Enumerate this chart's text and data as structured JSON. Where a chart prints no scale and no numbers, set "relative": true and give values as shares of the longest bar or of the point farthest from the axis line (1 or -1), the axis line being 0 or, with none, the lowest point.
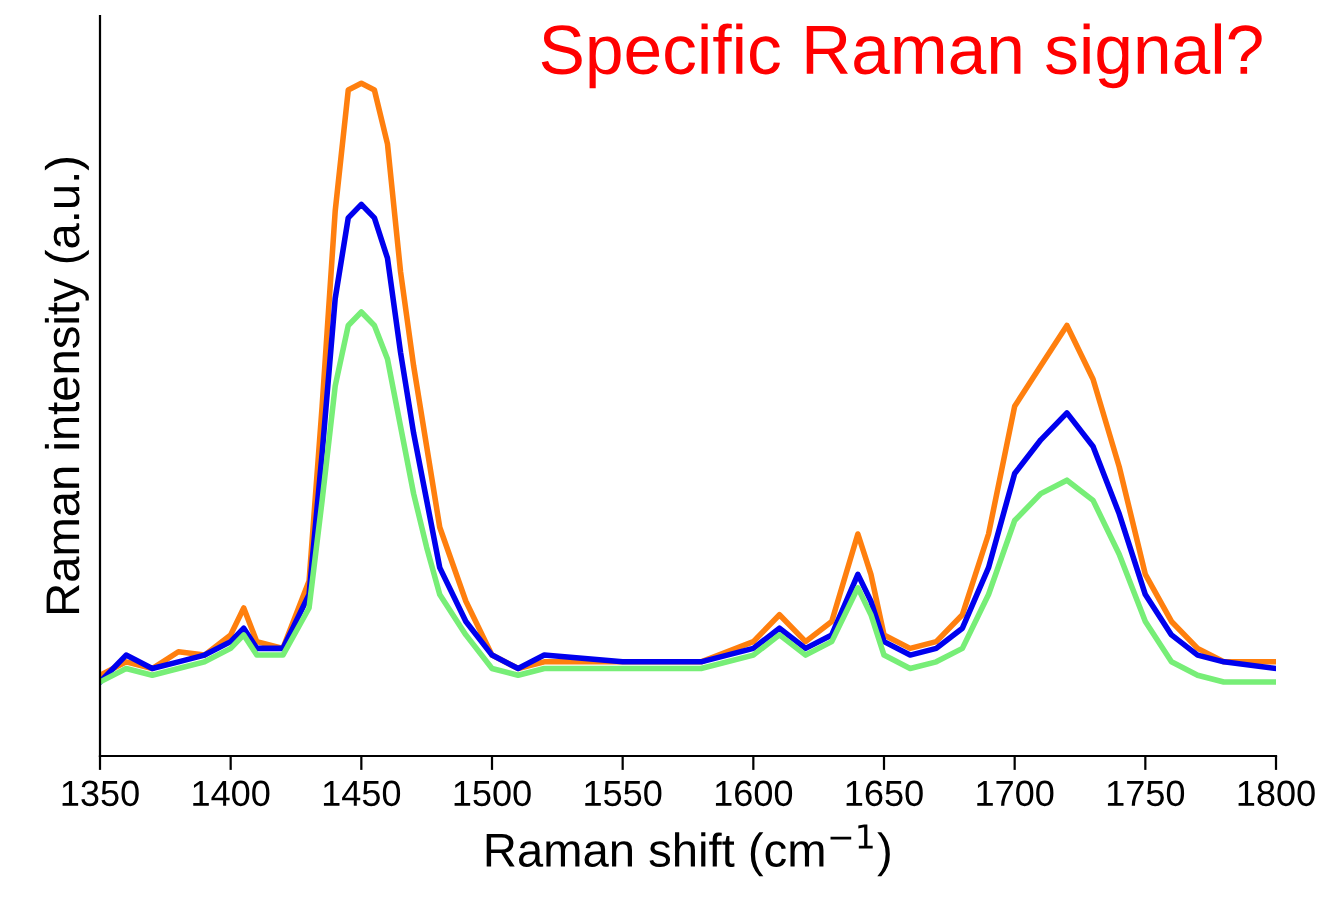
{
  "chart_data": {
    "type": "line",
    "relative": true,
    "xlabel": "Raman shift (cm$^{−1}$)",
    "ylabel": "Raman intensity (a.u.)",
    "annotations": [
      "Specific Raman signal?"
    ],
    "xlim": [
      1350,
      1800
    ],
    "xticks": [
      1350,
      1400,
      1450,
      1500,
      1550,
      1600,
      1650,
      1700,
      1750,
      1800
    ],
    "grid": false,
    "legend": false,
    "line_style": "solid",
    "marker": "none",
    "x": [
      1350,
      1360,
      1370,
      1380,
      1390,
      1400,
      1405,
      1410,
      1420,
      1430,
      1435,
      1440,
      1445,
      1450,
      1455,
      1460,
      1465,
      1470,
      1475,
      1480,
      1490,
      1500,
      1510,
      1520,
      1550,
      1580,
      1600,
      1610,
      1620,
      1630,
      1640,
      1645,
      1650,
      1660,
      1670,
      1680,
      1690,
      1700,
      1710,
      1720,
      1730,
      1740,
      1750,
      1760,
      1770,
      1780,
      1800
    ],
    "series": [
      {
        "color": "#ff7f0e",
        "values": [
          0.12,
          0.14,
          0.13,
          0.155,
          0.15,
          0.18,
          0.22,
          0.17,
          0.16,
          0.26,
          0.52,
          0.81,
          0.99,
          1.0,
          0.99,
          0.91,
          0.72,
          0.58,
          0.46,
          0.34,
          0.23,
          0.15,
          0.13,
          0.14,
          0.14,
          0.14,
          0.17,
          0.21,
          0.17,
          0.2,
          0.33,
          0.27,
          0.18,
          0.16,
          0.17,
          0.21,
          0.33,
          0.52,
          0.58,
          0.64,
          0.56,
          0.43,
          0.27,
          0.2,
          0.16,
          0.14,
          0.14
        ]
      },
      {
        "color": "#0000ee",
        "values": [
          0.11,
          0.15,
          0.13,
          0.14,
          0.15,
          0.17,
          0.19,
          0.16,
          0.16,
          0.24,
          0.45,
          0.68,
          0.8,
          0.82,
          0.8,
          0.74,
          0.6,
          0.48,
          0.38,
          0.28,
          0.2,
          0.15,
          0.13,
          0.15,
          0.14,
          0.14,
          0.16,
          0.19,
          0.16,
          0.18,
          0.27,
          0.23,
          0.17,
          0.15,
          0.16,
          0.19,
          0.28,
          0.42,
          0.47,
          0.51,
          0.46,
          0.36,
          0.24,
          0.18,
          0.15,
          0.14,
          0.13
        ]
      },
      {
        "color": "#77ee77",
        "values": [
          0.11,
          0.13,
          0.12,
          0.13,
          0.14,
          0.16,
          0.18,
          0.15,
          0.15,
          0.22,
          0.38,
          0.55,
          0.64,
          0.66,
          0.64,
          0.59,
          0.49,
          0.39,
          0.31,
          0.24,
          0.18,
          0.13,
          0.12,
          0.13,
          0.13,
          0.13,
          0.15,
          0.18,
          0.15,
          0.17,
          0.25,
          0.21,
          0.15,
          0.13,
          0.14,
          0.16,
          0.24,
          0.35,
          0.39,
          0.41,
          0.38,
          0.3,
          0.2,
          0.14,
          0.12,
          0.11,
          0.11
        ]
      }
    ]
  }
}
